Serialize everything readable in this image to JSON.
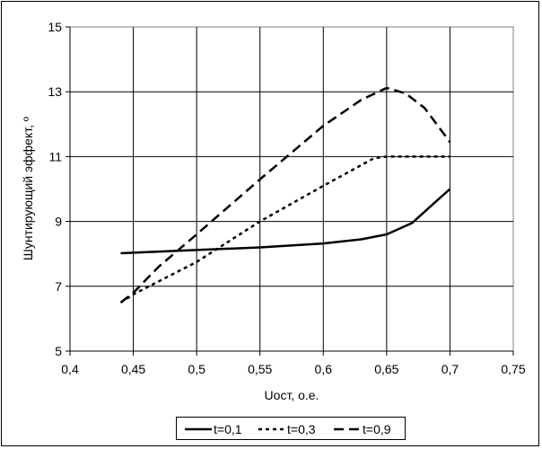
{
  "chart_data": {
    "type": "line",
    "title": "",
    "xlabel": "Uост, о.е.",
    "ylabel": "Шунтирующий эффект, º",
    "xlim": [
      0.4,
      0.75
    ],
    "ylim": [
      5,
      15
    ],
    "x_ticks": [
      0.4,
      0.45,
      0.5,
      0.55,
      0.6,
      0.65,
      0.7,
      0.75
    ],
    "x_tick_labels": [
      "0,4",
      "0,45",
      "0,5",
      "0,55",
      "0,6",
      "0,65",
      "0,7",
      "0,75"
    ],
    "y_ticks": [
      5,
      7,
      9,
      11,
      13,
      15
    ],
    "y_tick_labels": [
      "5",
      "7",
      "9",
      "11",
      "13",
      "15"
    ],
    "grid": true,
    "legend_position": "bottom",
    "series": [
      {
        "name": "t=0,1",
        "style": "solid",
        "color": "#000000",
        "points": [
          [
            0.44,
            8.02
          ],
          [
            0.5,
            8.12
          ],
          [
            0.55,
            8.2
          ],
          [
            0.6,
            8.32
          ],
          [
            0.63,
            8.45
          ],
          [
            0.65,
            8.6
          ],
          [
            0.67,
            8.95
          ],
          [
            0.69,
            9.65
          ],
          [
            0.7,
            10.0
          ]
        ]
      },
      {
        "name": "t=0,3",
        "style": "dotted",
        "color": "#000000",
        "points": [
          [
            0.44,
            6.5
          ],
          [
            0.45,
            6.75
          ],
          [
            0.5,
            7.75
          ],
          [
            0.55,
            9.0
          ],
          [
            0.6,
            10.1
          ],
          [
            0.64,
            10.95
          ],
          [
            0.65,
            11.0
          ],
          [
            0.7,
            11.0
          ]
        ]
      },
      {
        "name": "t=0,9",
        "style": "dashed",
        "color": "#000000",
        "points": [
          [
            0.44,
            6.5
          ],
          [
            0.45,
            6.8
          ],
          [
            0.47,
            7.6
          ],
          [
            0.5,
            8.6
          ],
          [
            0.55,
            10.3
          ],
          [
            0.6,
            11.95
          ],
          [
            0.63,
            12.75
          ],
          [
            0.65,
            13.12
          ],
          [
            0.665,
            12.95
          ],
          [
            0.68,
            12.5
          ],
          [
            0.7,
            11.45
          ]
        ]
      }
    ]
  }
}
